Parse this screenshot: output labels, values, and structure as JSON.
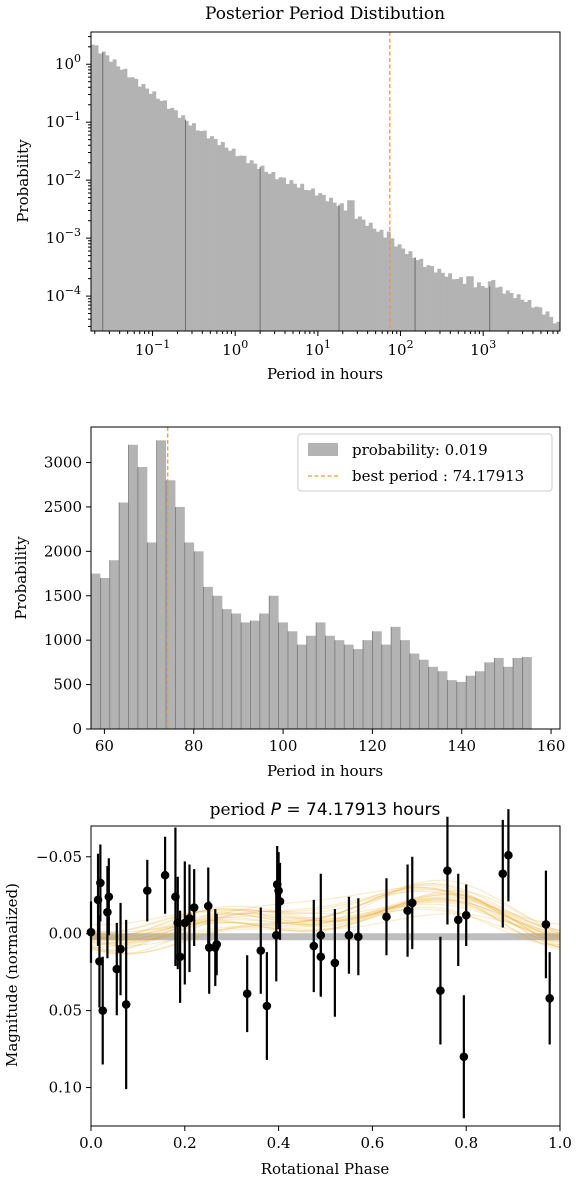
{
  "chart_data": [
    {
      "type": "bar",
      "title": "Posterior Period Distibution",
      "xlabel": "Period in hours",
      "ylabel": "Probability",
      "xscale": "log",
      "yscale": "log",
      "xlim": [
        0.018,
        8500
      ],
      "ylim": [
        2.5e-05,
        3.6
      ],
      "xtick_labels": [
        {
          "value": 0.1,
          "base": "10",
          "exp": "−1"
        },
        {
          "value": 1,
          "base": "10",
          "exp": "0"
        },
        {
          "value": 10,
          "base": "10",
          "exp": "1"
        },
        {
          "value": 100,
          "base": "10",
          "exp": "2"
        },
        {
          "value": 1000,
          "base": "10",
          "exp": "3"
        }
      ],
      "ytick_labels": [
        {
          "value": 1,
          "base": "10",
          "exp": "0"
        },
        {
          "value": 0.1,
          "base": "10",
          "exp": "−1"
        },
        {
          "value": 0.01,
          "base": "10",
          "exp": "−2"
        },
        {
          "value": 0.001,
          "base": "10",
          "exp": "−3"
        },
        {
          "value": 0.0001,
          "base": "10",
          "exp": "−4"
        }
      ],
      "best_period": 74.17913,
      "bar_color": "#b3b3b3",
      "line_color": "#e8a317",
      "log_bins": {
        "start": 0.018,
        "end": 8500,
        "anchors": [
          [
            0.018,
            2.3
          ],
          [
            0.03,
            1.3
          ],
          [
            0.06,
            0.55
          ],
          [
            0.1,
            0.32
          ],
          [
            0.3,
            0.09
          ],
          [
            1,
            0.03
          ],
          [
            3,
            0.012
          ],
          [
            10,
            0.006
          ],
          [
            20,
            0.0035
          ],
          [
            40,
            0.0018
          ],
          [
            74,
            0.001
          ],
          [
            100,
            0.0007
          ],
          [
            200,
            0.00035
          ],
          [
            400,
            0.00022
          ],
          [
            800,
            0.00016
          ],
          [
            1500,
            0.00014
          ],
          [
            3000,
            9e-05
          ],
          [
            6000,
            5e-05
          ],
          [
            8500,
            3e-05
          ]
        ],
        "spikes": [
          [
            25,
            0.0045
          ],
          [
            74,
            0.0013
          ],
          [
            600,
            0.00015
          ],
          [
            700,
            0.00022
          ],
          [
            1200,
            0.00018
          ],
          [
            1300,
            0.00019
          ]
        ]
      }
    },
    {
      "type": "bar",
      "xlabel": "Period in hours",
      "ylabel": "Probability",
      "xlim": [
        57,
        162
      ],
      "ylim": [
        0,
        3400
      ],
      "yticks": [
        0,
        500,
        1000,
        1500,
        2000,
        2500,
        3000
      ],
      "xticks": [
        60,
        80,
        100,
        120,
        140,
        160
      ],
      "bin_start": 57,
      "bin_width": 2.1,
      "values": [
        1750,
        1700,
        1900,
        2550,
        3200,
        2950,
        2100,
        3250,
        2800,
        2500,
        2100,
        2000,
        1600,
        1500,
        1350,
        1300,
        1200,
        1220,
        1300,
        1500,
        1200,
        1100,
        950,
        1050,
        1200,
        1050,
        1000,
        950,
        900,
        1000,
        1100,
        950,
        1150,
        1000,
        850,
        780,
        700,
        650,
        550,
        530,
        600,
        650,
        750,
        800,
        700,
        800,
        810
      ],
      "legend": [
        {
          "label": "probability: 0.019",
          "kind": "patch",
          "color": "#b3b3b3"
        },
        {
          "label": "best period : 74.17913",
          "kind": "line",
          "color": "#e8a317"
        }
      ],
      "legend_position": "top-right",
      "best_period": 74.17913
    },
    {
      "type": "scatter",
      "title_prefix": "period ",
      "title_var": "P",
      "title_suffix": " = 74.17913 hours",
      "xlabel": "Rotational Phase",
      "ylabel": "Magnitude (normalized)",
      "xlim": [
        0,
        1
      ],
      "ylim": [
        0.125,
        -0.07
      ],
      "y_inverted": true,
      "xticks": [
        "0.0",
        "0.2",
        "0.4",
        "0.6",
        "0.8",
        "1.0"
      ],
      "yticks": [
        {
          "value": -0.05,
          "label": "−0.05"
        },
        {
          "value": 0.0,
          "label": "0.00"
        },
        {
          "value": 0.05,
          "label": "0.05"
        },
        {
          "value": 0.1,
          "label": "0.10"
        }
      ],
      "model_color": "#e8a317",
      "mean_line": {
        "y": 0.002,
        "color": "#b3b3b3"
      },
      "points": [
        {
          "x": 0.0,
          "y": -0.001,
          "err": 0.02
        },
        {
          "x": 0.015,
          "y": -0.022,
          "err": 0.03
        },
        {
          "x": 0.018,
          "y": 0.018,
          "err": 0.03
        },
        {
          "x": 0.02,
          "y": -0.033,
          "err": 0.025
        },
        {
          "x": 0.025,
          "y": 0.05,
          "err": 0.035
        },
        {
          "x": 0.035,
          "y": -0.014,
          "err": 0.03
        },
        {
          "x": 0.038,
          "y": -0.024,
          "err": 0.025
        },
        {
          "x": 0.055,
          "y": 0.023,
          "err": 0.03
        },
        {
          "x": 0.063,
          "y": 0.01,
          "err": 0.03
        },
        {
          "x": 0.075,
          "y": 0.046,
          "err": 0.055
        },
        {
          "x": 0.12,
          "y": -0.028,
          "err": 0.02
        },
        {
          "x": 0.158,
          "y": -0.038,
          "err": 0.025
        },
        {
          "x": 0.18,
          "y": -0.024,
          "err": 0.045
        },
        {
          "x": 0.185,
          "y": -0.007,
          "err": 0.03
        },
        {
          "x": 0.19,
          "y": 0.015,
          "err": 0.03
        },
        {
          "x": 0.2,
          "y": -0.007,
          "err": 0.04
        },
        {
          "x": 0.21,
          "y": -0.01,
          "err": 0.035
        },
        {
          "x": 0.22,
          "y": -0.017,
          "err": 0.025
        },
        {
          "x": 0.25,
          "y": -0.018,
          "err": 0.025
        },
        {
          "x": 0.252,
          "y": 0.009,
          "err": 0.03
        },
        {
          "x": 0.265,
          "y": 0.009,
          "err": 0.025
        },
        {
          "x": 0.268,
          "y": 0.007,
          "err": 0.02
        },
        {
          "x": 0.333,
          "y": 0.039,
          "err": 0.025
        },
        {
          "x": 0.362,
          "y": 0.011,
          "err": 0.028
        },
        {
          "x": 0.375,
          "y": 0.047,
          "err": 0.035
        },
        {
          "x": 0.395,
          "y": 0.001,
          "err": 0.03
        },
        {
          "x": 0.397,
          "y": -0.032,
          "err": 0.025
        },
        {
          "x": 0.4,
          "y": -0.028,
          "err": 0.025
        },
        {
          "x": 0.403,
          "y": -0.021,
          "err": 0.025
        },
        {
          "x": 0.475,
          "y": 0.008,
          "err": 0.03
        },
        {
          "x": 0.49,
          "y": 0.015,
          "err": 0.025
        },
        {
          "x": 0.49,
          "y": 0.001,
          "err": 0.04
        },
        {
          "x": 0.52,
          "y": 0.019,
          "err": 0.035
        },
        {
          "x": 0.55,
          "y": 0.001,
          "err": 0.025
        },
        {
          "x": 0.57,
          "y": 0.002,
          "err": 0.025
        },
        {
          "x": 0.63,
          "y": -0.011,
          "err": 0.025
        },
        {
          "x": 0.675,
          "y": -0.015,
          "err": 0.03
        },
        {
          "x": 0.685,
          "y": -0.02,
          "err": 0.03
        },
        {
          "x": 0.745,
          "y": 0.037,
          "err": 0.035
        },
        {
          "x": 0.76,
          "y": -0.041,
          "err": 0.035
        },
        {
          "x": 0.783,
          "y": -0.009,
          "err": 0.03
        },
        {
          "x": 0.795,
          "y": 0.08,
          "err": 0.04
        },
        {
          "x": 0.8,
          "y": -0.012,
          "err": 0.02
        },
        {
          "x": 0.878,
          "y": -0.039,
          "err": 0.035
        },
        {
          "x": 0.89,
          "y": -0.051,
          "err": 0.03
        },
        {
          "x": 0.97,
          "y": -0.006,
          "err": 0.035
        },
        {
          "x": 0.978,
          "y": 0.042,
          "err": 0.03
        }
      ]
    }
  ]
}
